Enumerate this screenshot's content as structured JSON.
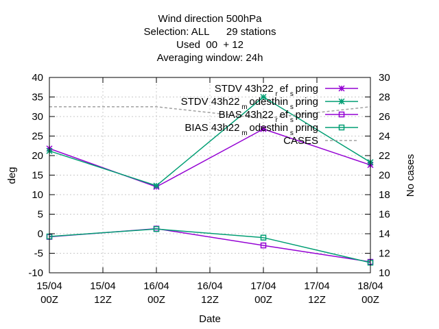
{
  "chart_data": {
    "type": "line",
    "title_lines": [
      "Wind direction 500hPa",
      "Selection: ALL      29 stations",
      "Used  00  + 12",
      "Averaging window: 24h"
    ],
    "xlabel": "Date",
    "ylabel": "deg",
    "y2label": "No cases",
    "x_ticks": [
      {
        "top": "15/04",
        "bottom": "00Z"
      },
      {
        "top": "15/04",
        "bottom": "12Z"
      },
      {
        "top": "16/04",
        "bottom": "00Z"
      },
      {
        "top": "16/04",
        "bottom": "12Z"
      },
      {
        "top": "17/04",
        "bottom": "00Z"
      },
      {
        "top": "17/04",
        "bottom": "12Z"
      },
      {
        "top": "18/04",
        "bottom": "00Z"
      }
    ],
    "y_ticks": [
      "40",
      "35",
      "30",
      "25",
      "20",
      "15",
      "10",
      "5",
      "0",
      "-5",
      "-10"
    ],
    "y2_ticks": [
      "30",
      "28",
      "26",
      "24",
      "22",
      "20",
      "18",
      "16",
      "14",
      "12",
      "10"
    ],
    "xlim": [
      0,
      6
    ],
    "ylim": [
      -10,
      40
    ],
    "y2lim": [
      10,
      30
    ],
    "grid": true,
    "legend_position": "top-right",
    "series": [
      {
        "name": "STDV 43h22_ref_spring",
        "legend": {
          "base": "STDV 43h22",
          "sub1": "r",
          "mid": "ef",
          "sub2": "s",
          "tail": "pring"
        },
        "color": "#9400d3",
        "marker": "star",
        "x": [
          0,
          2,
          4,
          6
        ],
        "values": [
          21.8,
          12.0,
          26.8,
          17.6
        ]
      },
      {
        "name": "STDV 43h22_modesthin_spring",
        "legend": {
          "base": "STDV 43h22",
          "sub1": "m",
          "mid": "odesthin",
          "sub2": "s",
          "tail": "pring"
        },
        "color": "#009e73",
        "marker": "star",
        "x": [
          0,
          2,
          4,
          6
        ],
        "values": [
          21.2,
          12.3,
          35.0,
          18.3
        ]
      },
      {
        "name": "BIAS 43h22_ref_spring",
        "legend": {
          "base": "BIAS 43h22",
          "sub1": "r",
          "mid": "ef",
          "sub2": "s",
          "tail": "pring"
        },
        "color": "#9400d3",
        "marker": "square",
        "x": [
          0,
          2,
          4,
          6
        ],
        "values": [
          -0.8,
          1.3,
          -3.0,
          -7.2
        ]
      },
      {
        "name": "BIAS 43h22_modesthin_spring",
        "legend": {
          "base": "BIAS 43h22",
          "sub1": "m",
          "mid": "odesthin",
          "sub2": "s",
          "tail": "pring"
        },
        "color": "#009e73",
        "marker": "square",
        "x": [
          0,
          2,
          4,
          6
        ],
        "values": [
          -0.7,
          1.2,
          -1.0,
          -7.4
        ]
      },
      {
        "name": "CASES",
        "legend": {
          "base": "CASES",
          "sub1": "",
          "mid": "",
          "sub2": "",
          "tail": ""
        },
        "color": "#a0a0a0",
        "marker": "none",
        "axis": "y2",
        "x": [
          0,
          2,
          4,
          6
        ],
        "values": [
          27.0,
          27.0,
          25.8,
          27.0
        ]
      }
    ]
  }
}
